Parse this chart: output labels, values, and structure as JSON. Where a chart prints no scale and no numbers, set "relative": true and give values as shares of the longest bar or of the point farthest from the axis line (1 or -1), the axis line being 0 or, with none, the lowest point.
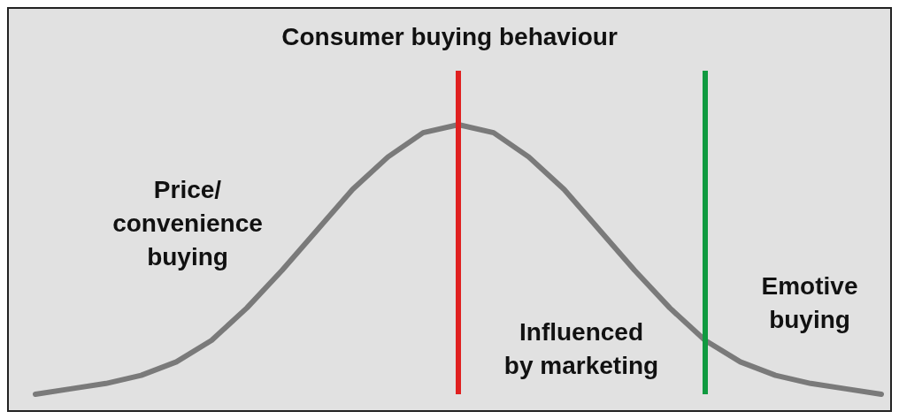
{
  "chart_data": {
    "type": "line",
    "title": "Consumer buying behaviour",
    "relative": true,
    "tick_labels": false,
    "marker": "none",
    "line_style": "solid",
    "categories": [
      null,
      null,
      null,
      null,
      null,
      null,
      null,
      null,
      null,
      null,
      null,
      null,
      null,
      null,
      null,
      null,
      null,
      null,
      null,
      null,
      null,
      null,
      null,
      null,
      null
    ],
    "series": [
      {
        "color": "#7a7a7a",
        "values": [
          0,
          0.02,
          0.04,
          0.07,
          0.12,
          0.2,
          0.32,
          0.46,
          0.61,
          0.76,
          0.88,
          0.97,
          1,
          0.97,
          0.88,
          0.76,
          0.61,
          0.46,
          0.32,
          0.2,
          0.12,
          0.07,
          0.04,
          0.02,
          0
        ]
      }
    ],
    "annotations": [
      "Price/\nconvenience\nbuying",
      "Influenced\nby marketing",
      "Emotive\nbuying"
    ]
  }
}
